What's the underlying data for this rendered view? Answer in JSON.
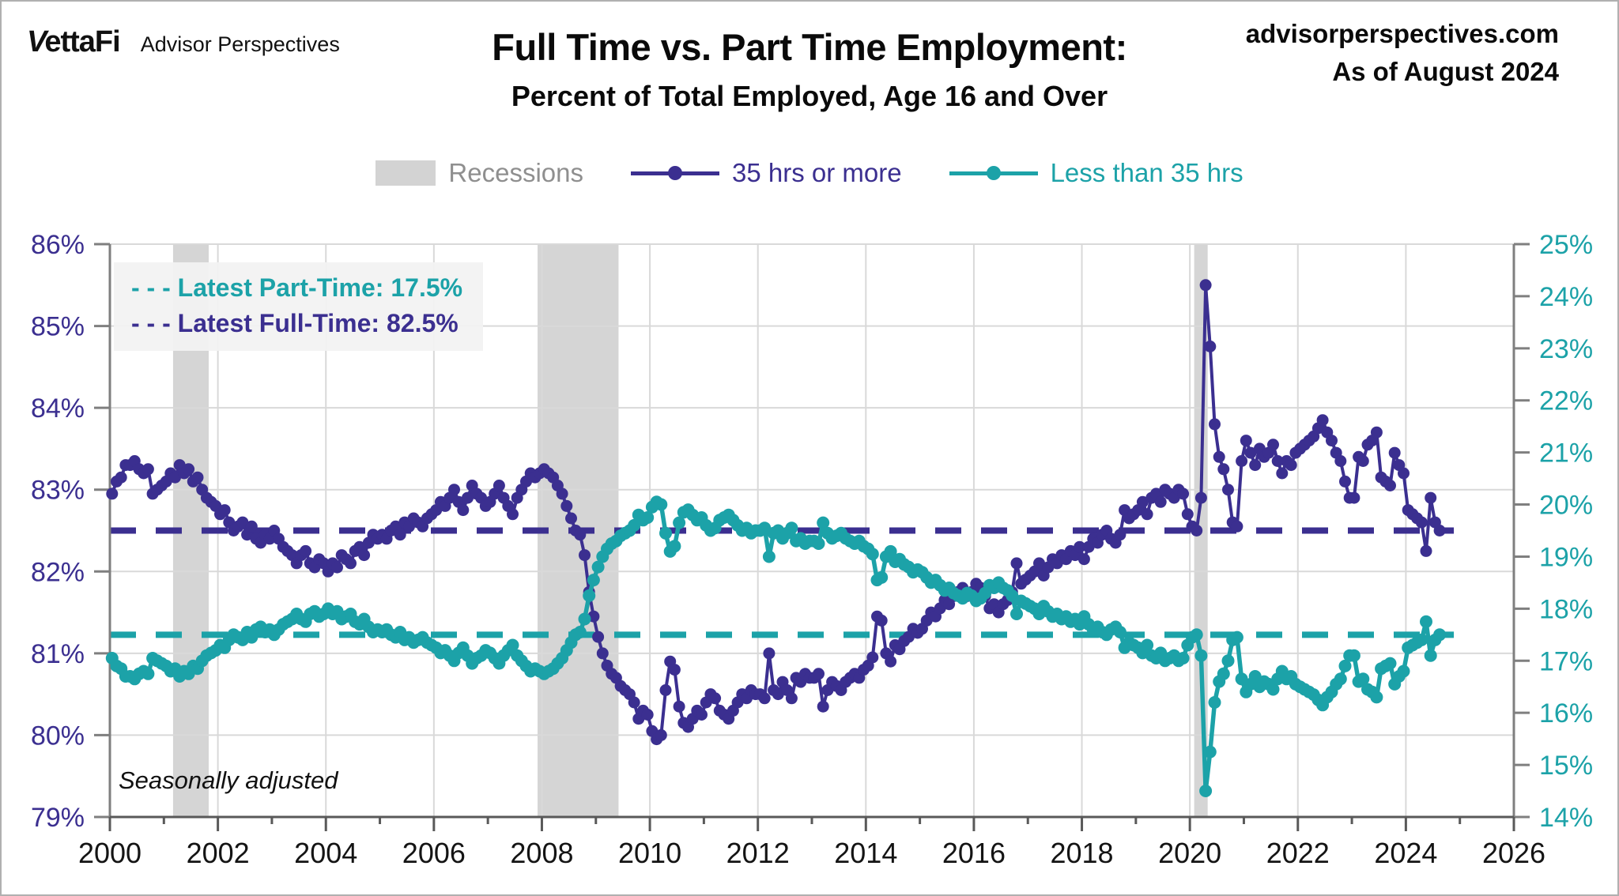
{
  "header": {
    "logo": {
      "brand": "VettaFi",
      "sub": "Advisor Perspectives"
    },
    "title": "Full Time vs. Part Time Employment:",
    "subtitle": "Percent of Total Employed, Age 16 and Over",
    "source": "advisorperspectives.com",
    "as_of": "As of August 2024"
  },
  "legend": {
    "items": [
      {
        "type": "swatch",
        "label": "Recessions",
        "color": "#d3d3d3",
        "text_color": "#8f8f8f"
      },
      {
        "type": "line-marker",
        "label": "35 hrs or more",
        "color": "#3b2f90",
        "text_color": "#3b2f90"
      },
      {
        "type": "line-marker",
        "label": "Less than 35 hrs",
        "color": "#1ca2a8",
        "text_color": "#1ca2a8"
      }
    ]
  },
  "annotations": {
    "part_time_line": "- - -  Latest Part-Time: 17.5%",
    "full_time_line": "- - -  Latest Full-Time: 82.5%",
    "note": "Seasonally adjusted"
  },
  "colors": {
    "full_time": "#3b2f90",
    "part_time": "#1ca2a8",
    "recession": "#d5d5d5",
    "gridline": "#d9d9d9",
    "axis": "#7f7f7f",
    "bottom_axis": "#595959",
    "x_label": "#141414",
    "left_label": "#3b2f90",
    "right_label": "#1ca2a8"
  },
  "chart_data": {
    "type": "line",
    "title": "Full Time vs. Part Time Employment:",
    "subtitle": "Percent of Total Employed, Age 16 and Over",
    "x_frequency": "monthly",
    "x_start_year": 2000,
    "x_end_label": "August 2024",
    "x_axis": {
      "min": 2000,
      "max": 2026,
      "tick_step": 2,
      "labels": [
        "2000",
        "2002",
        "2004",
        "2006",
        "2008",
        "2010",
        "2012",
        "2014",
        "2016",
        "2018",
        "2020",
        "2022",
        "2024",
        "2026"
      ]
    },
    "left_axis": {
      "min": 79,
      "max": 86,
      "step": 1,
      "suffix": "%",
      "labels": [
        "86%",
        "85%",
        "84%",
        "83%",
        "82%",
        "81%",
        "80%",
        "79%"
      ]
    },
    "right_axis": {
      "min": 14,
      "max": 25,
      "step": 1,
      "suffix": "%",
      "labels": [
        "25%",
        "24%",
        "23%",
        "22%",
        "21%",
        "20%",
        "19%",
        "18%",
        "17%",
        "16%",
        "15%",
        "14%"
      ]
    },
    "grid": {
      "horizontal": true,
      "vertical": true
    },
    "legend_position": "top",
    "recessions": [
      [
        2001.17,
        2001.83
      ],
      [
        2007.92,
        2009.42
      ],
      [
        2020.08,
        2020.33
      ]
    ],
    "reference_lines": [
      {
        "name": "Latest Full-Time",
        "value": 82.5,
        "axis": "left",
        "color": "#3b2f90"
      },
      {
        "name": "Latest Part-Time",
        "value": 17.5,
        "axis": "right",
        "color": "#1ca2a8"
      }
    ],
    "series": [
      {
        "name": "35 hrs or more",
        "axis": "left",
        "color": "#3b2f90",
        "values": [
          82.95,
          83.1,
          83.15,
          83.3,
          83.3,
          83.35,
          83.25,
          83.2,
          83.25,
          82.95,
          83,
          83.05,
          83.1,
          83.2,
          83.15,
          83.3,
          83.2,
          83.25,
          83.1,
          83.15,
          83,
          82.9,
          82.85,
          82.8,
          82.7,
          82.75,
          82.6,
          82.5,
          82.55,
          82.6,
          82.45,
          82.55,
          82.4,
          82.35,
          82.45,
          82.4,
          82.5,
          82.4,
          82.3,
          82.25,
          82.2,
          82.1,
          82.2,
          82.25,
          82.1,
          82.05,
          82.15,
          82.1,
          82,
          82.1,
          82.05,
          82.2,
          82.15,
          82.1,
          82.25,
          82.3,
          82.2,
          82.35,
          82.45,
          82.4,
          82.45,
          82.4,
          82.5,
          82.55,
          82.45,
          82.6,
          82.55,
          82.65,
          82.6,
          82.55,
          82.65,
          82.7,
          82.75,
          82.85,
          82.8,
          82.9,
          83,
          82.85,
          82.75,
          82.9,
          83.05,
          82.95,
          82.9,
          82.8,
          82.85,
          82.95,
          83.05,
          82.9,
          82.8,
          82.7,
          82.9,
          83,
          83.1,
          83.2,
          83.15,
          83.2,
          83.25,
          83.2,
          83.15,
          83.05,
          82.95,
          82.8,
          82.65,
          82.5,
          82.45,
          82.2,
          81.75,
          81.45,
          81.2,
          81,
          80.85,
          80.75,
          80.7,
          80.6,
          80.55,
          80.5,
          80.4,
          80.2,
          80.3,
          80.25,
          80.05,
          79.95,
          80,
          80.55,
          80.9,
          80.8,
          80.35,
          80.15,
          80.1,
          80.2,
          80.3,
          80.25,
          80.4,
          80.5,
          80.45,
          80.3,
          80.25,
          80.2,
          80.3,
          80.4,
          80.5,
          80.45,
          80.55,
          80.5,
          80.5,
          80.45,
          81,
          80.55,
          80.5,
          80.65,
          80.55,
          80.45,
          80.7,
          80.65,
          80.75,
          80.7,
          80.7,
          80.75,
          80.35,
          80.55,
          80.65,
          80.6,
          80.55,
          80.65,
          80.7,
          80.75,
          80.7,
          80.8,
          80.85,
          80.95,
          81.45,
          81.4,
          81,
          80.9,
          81.1,
          81.05,
          81.15,
          81.2,
          81.3,
          81.25,
          81.3,
          81.4,
          81.5,
          81.45,
          81.55,
          81.65,
          81.6,
          81.7,
          81.75,
          81.8,
          81.7,
          81.75,
          81.85,
          81.8,
          81.7,
          81.55,
          81.6,
          81.5,
          81.6,
          81.65,
          81.75,
          82.1,
          81.85,
          81.9,
          81.95,
          82,
          82.1,
          81.95,
          82.05,
          82.15,
          82.1,
          82.2,
          82.15,
          82.25,
          82.2,
          82.3,
          82.15,
          82.3,
          82.4,
          82.35,
          82.45,
          82.5,
          82.4,
          82.35,
          82.45,
          82.75,
          82.65,
          82.7,
          82.75,
          82.85,
          82.7,
          82.9,
          82.95,
          82.85,
          83,
          82.95,
          82.9,
          83,
          82.95,
          82.7,
          82.55,
          82.5,
          82.9,
          85.5,
          84.75,
          83.8,
          83.4,
          83.25,
          83,
          82.6,
          82.55,
          83.35,
          83.6,
          83.45,
          83.3,
          83.5,
          83.4,
          83.45,
          83.55,
          83.35,
          83.2,
          83.35,
          83.3,
          83.45,
          83.5,
          83.55,
          83.6,
          83.65,
          83.75,
          83.85,
          83.7,
          83.6,
          83.45,
          83.35,
          83.1,
          82.9,
          82.9,
          83.4,
          83.35,
          83.55,
          83.6,
          83.7,
          83.15,
          83.1,
          83.05,
          83.45,
          83.3,
          83.2,
          82.75,
          82.7,
          82.65,
          82.6,
          82.25,
          82.9,
          82.6,
          82.5
        ],
        "latest": 82.5
      },
      {
        "name": "Less than 35 hrs",
        "axis": "right",
        "color": "#1ca2a8",
        "values": [
          17.05,
          16.9,
          16.85,
          16.7,
          16.7,
          16.65,
          16.75,
          16.8,
          16.75,
          17.05,
          17,
          16.95,
          16.9,
          16.8,
          16.85,
          16.7,
          16.8,
          16.75,
          16.9,
          16.85,
          17,
          17.1,
          17.15,
          17.2,
          17.3,
          17.25,
          17.4,
          17.5,
          17.45,
          17.4,
          17.55,
          17.45,
          17.6,
          17.65,
          17.55,
          17.6,
          17.5,
          17.6,
          17.7,
          17.75,
          17.8,
          17.9,
          17.8,
          17.75,
          17.9,
          17.95,
          17.85,
          17.9,
          18,
          17.9,
          17.95,
          17.8,
          17.85,
          17.9,
          17.75,
          17.7,
          17.8,
          17.65,
          17.55,
          17.6,
          17.55,
          17.6,
          17.5,
          17.45,
          17.55,
          17.4,
          17.45,
          17.35,
          17.4,
          17.45,
          17.35,
          17.3,
          17.25,
          17.15,
          17.2,
          17.1,
          17,
          17.15,
          17.25,
          17.1,
          16.95,
          17.05,
          17.1,
          17.2,
          17.15,
          17.05,
          16.95,
          17.1,
          17.2,
          17.3,
          17.1,
          17,
          16.9,
          16.8,
          16.85,
          16.8,
          16.75,
          16.8,
          16.85,
          16.95,
          17.05,
          17.2,
          17.35,
          17.5,
          17.55,
          17.8,
          18.25,
          18.55,
          18.8,
          19,
          19.15,
          19.25,
          19.3,
          19.4,
          19.45,
          19.5,
          19.6,
          19.8,
          19.7,
          19.75,
          19.95,
          20.05,
          20,
          19.45,
          19.1,
          19.2,
          19.65,
          19.85,
          19.9,
          19.8,
          19.7,
          19.75,
          19.6,
          19.5,
          19.55,
          19.7,
          19.75,
          19.8,
          19.7,
          19.6,
          19.5,
          19.55,
          19.45,
          19.5,
          19.5,
          19.55,
          19,
          19.45,
          19.5,
          19.35,
          19.45,
          19.55,
          19.3,
          19.35,
          19.25,
          19.3,
          19.3,
          19.25,
          19.65,
          19.45,
          19.35,
          19.4,
          19.45,
          19.35,
          19.3,
          19.25,
          19.3,
          19.2,
          19.15,
          19.05,
          18.55,
          18.6,
          19,
          19.1,
          18.9,
          18.95,
          18.85,
          18.8,
          18.7,
          18.75,
          18.7,
          18.6,
          18.5,
          18.55,
          18.45,
          18.35,
          18.4,
          18.3,
          18.25,
          18.2,
          18.3,
          18.25,
          18.15,
          18.2,
          18.3,
          18.45,
          18.4,
          18.5,
          18.4,
          18.35,
          18.25,
          17.9,
          18.15,
          18.1,
          18.05,
          18,
          17.9,
          18.05,
          17.95,
          17.85,
          17.9,
          17.8,
          17.85,
          17.75,
          17.8,
          17.7,
          17.85,
          17.7,
          17.6,
          17.65,
          17.55,
          17.5,
          17.6,
          17.65,
          17.55,
          17.25,
          17.35,
          17.3,
          17.25,
          17.15,
          17.3,
          17.1,
          17.05,
          17.15,
          17,
          17.05,
          17.1,
          17,
          17.05,
          17.3,
          17.45,
          17.5,
          17.1,
          14.5,
          15.25,
          16.2,
          16.6,
          16.75,
          17,
          17.4,
          17.45,
          16.65,
          16.4,
          16.55,
          16.7,
          16.5,
          16.6,
          16.55,
          16.45,
          16.65,
          16.8,
          16.65,
          16.7,
          16.55,
          16.5,
          16.45,
          16.4,
          16.35,
          16.25,
          16.15,
          16.3,
          16.4,
          16.55,
          16.65,
          16.9,
          17.1,
          17.1,
          16.6,
          16.65,
          16.45,
          16.4,
          16.3,
          16.85,
          16.9,
          16.95,
          16.55,
          16.7,
          16.8,
          17.25,
          17.3,
          17.35,
          17.4,
          17.75,
          17.1,
          17.4,
          17.5
        ],
        "latest": 17.5
      }
    ]
  }
}
